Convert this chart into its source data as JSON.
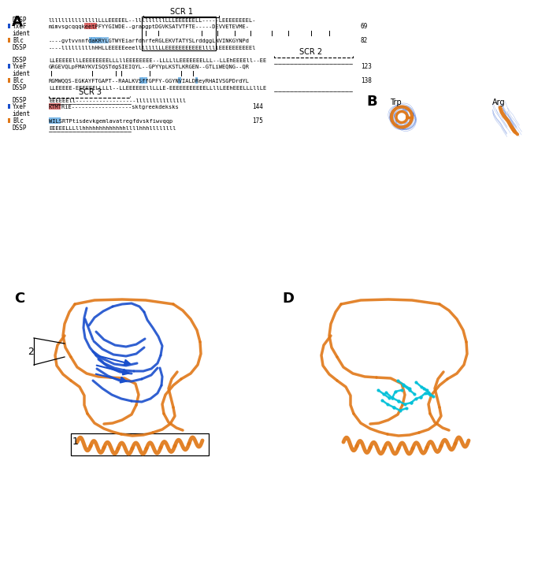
{
  "panel_A_label": "A",
  "panel_B_label": "B",
  "panel_C_label": "C",
  "panel_D_label": "D",
  "background_color": "#ffffff",
  "scr1_label": "SCR 1",
  "scr2_label": "SCR 2",
  "scr3_label": "SCR 3",
  "yxef_color": "#1a4fcc",
  "blc_color": "#e07818",
  "cyan_color": "#00c0d8",
  "red_highlight": "#d04040",
  "blue_box": "#50a0e0",
  "seq_fontsize": 5.0,
  "label_fontsize": 5.5
}
